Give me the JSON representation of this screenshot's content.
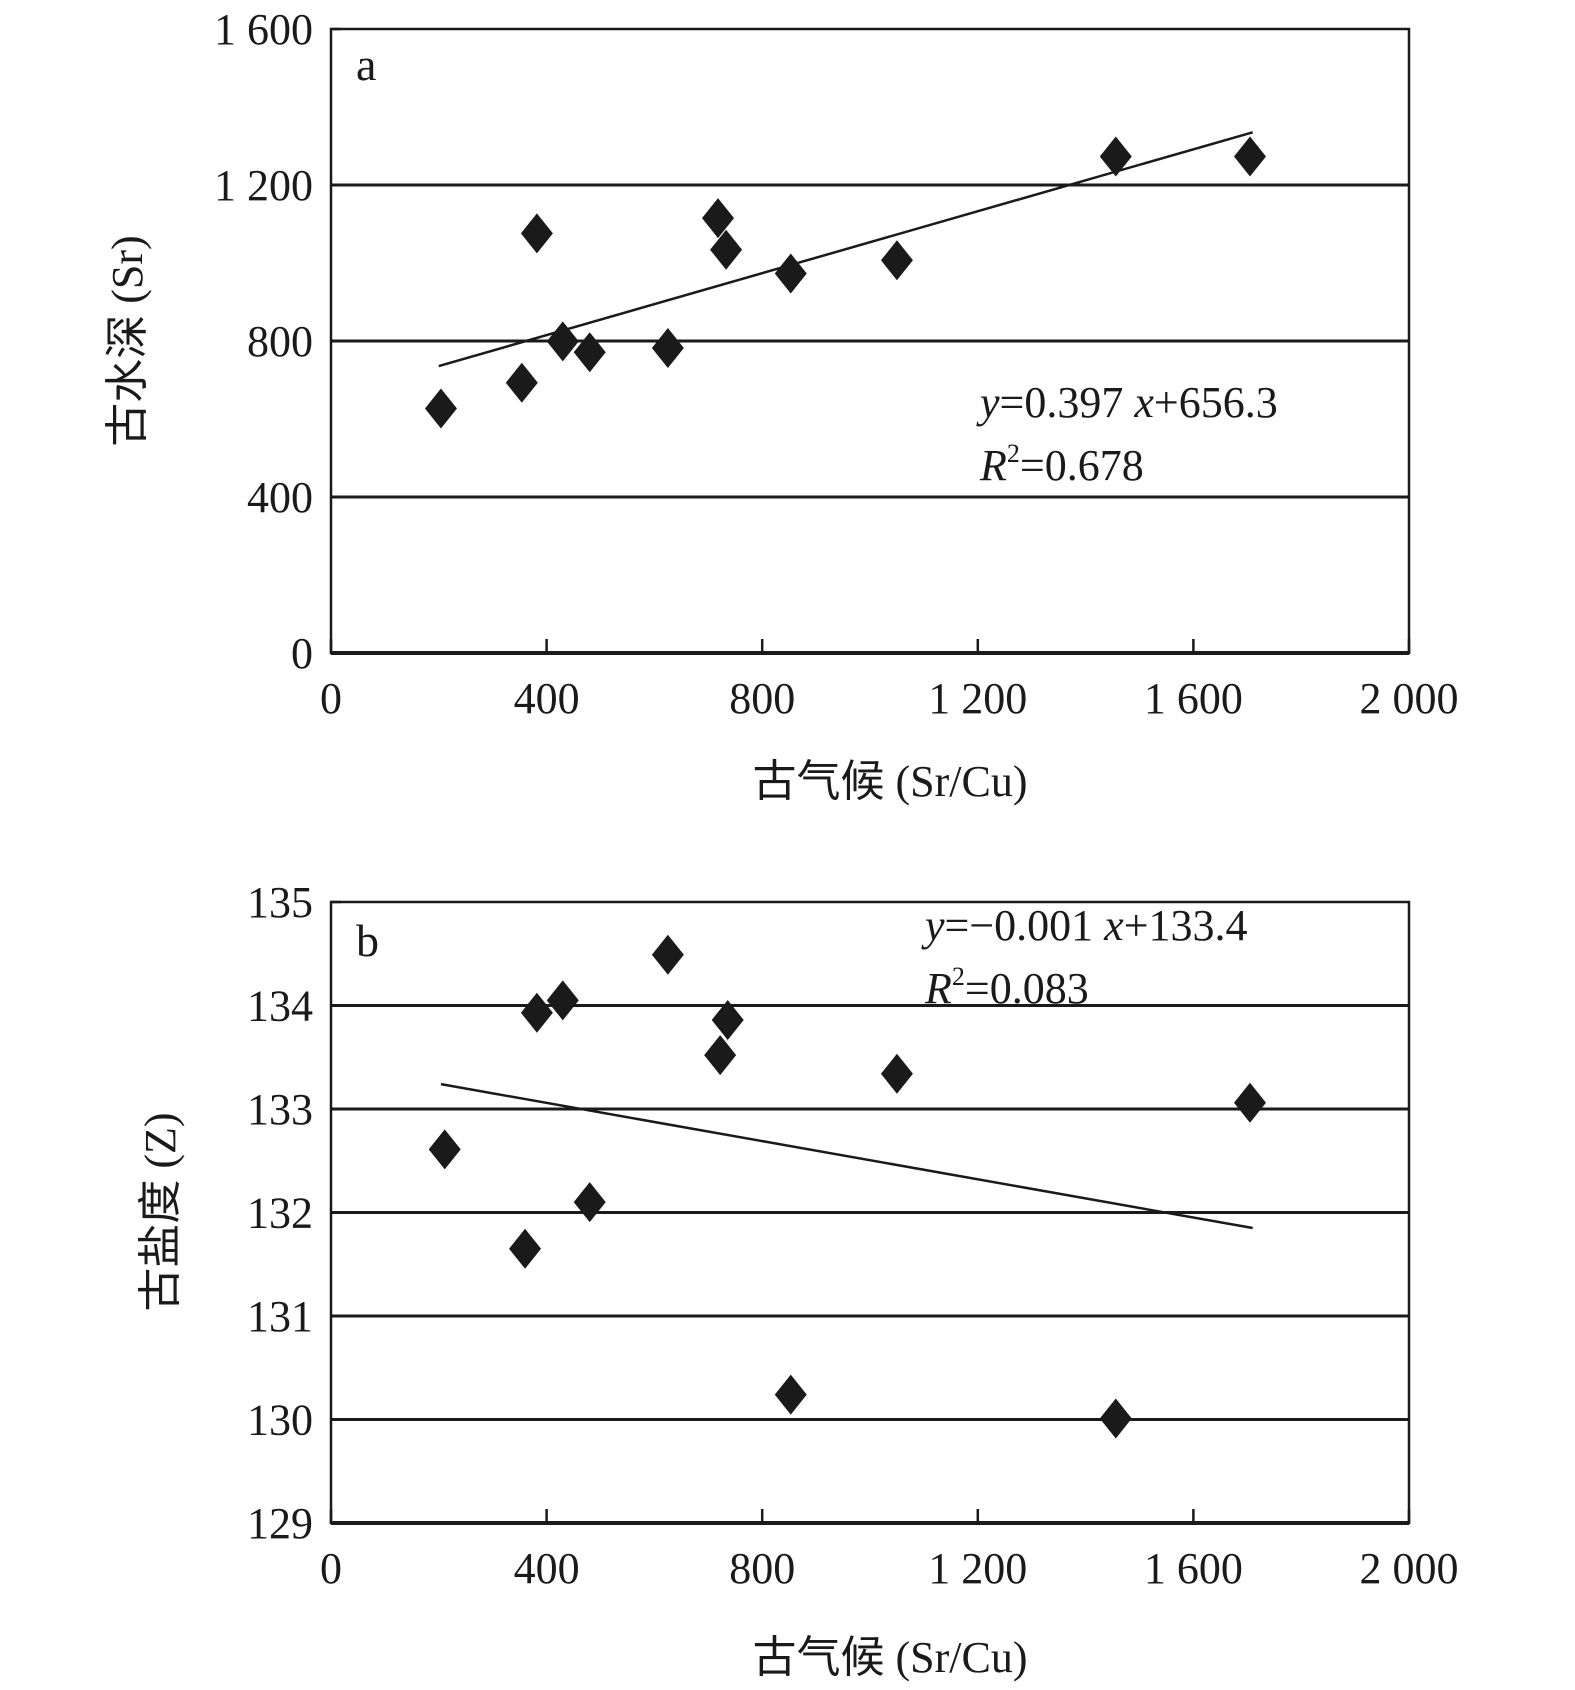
{
  "chart_data": [
    {
      "type": "scatter",
      "panel_label": "a",
      "xlabel": "古气候 (Sr/Cu)",
      "ylabel": "古水深 (Sr)",
      "xlim": [
        0,
        2000
      ],
      "ylim": [
        0,
        1600
      ],
      "xticks": [
        0,
        400,
        800,
        1200,
        1600,
        2000
      ],
      "xtick_labels": [
        "0",
        "400",
        "800",
        "1 200",
        "1 600",
        "2 000"
      ],
      "yticks": [
        0,
        400,
        800,
        1200,
        1600
      ],
      "ytick_labels": [
        "0",
        "400",
        "800",
        "1 200",
        "1 600"
      ],
      "gridlines_y": [
        400,
        800,
        1200
      ],
      "x": [
        204,
        354,
        382,
        430,
        480,
        625,
        718,
        733,
        853,
        1050,
        1456,
        1705
      ],
      "y": [
        627,
        693,
        1076,
        799,
        771,
        782,
        1115,
        1034,
        973,
        1007,
        1273,
        1273
      ],
      "trendline": {
        "slope": 0.397,
        "intercept": 656.3,
        "x_range": [
          200,
          1710
        ]
      },
      "equation": {
        "y_part": "y",
        "rest": "=0.397 ",
        "x_part": "x",
        "tail": "+656.3"
      },
      "r2": {
        "r": "R",
        "sup": "2",
        "value": "=0.678"
      },
      "marker_color": "#1a1a1a"
    },
    {
      "type": "scatter",
      "panel_label": "b",
      "xlabel": "古气候 (Sr/Cu)",
      "ylabel": "古盐度 (Z)",
      "xlim": [
        0,
        2000
      ],
      "ylim": [
        129,
        135
      ],
      "xticks": [
        0,
        400,
        800,
        1200,
        1600,
        2000
      ],
      "xtick_labels": [
        "0",
        "400",
        "800",
        "1 200",
        "1 600",
        "2 000"
      ],
      "yticks": [
        129,
        130,
        131,
        132,
        133,
        134,
        135
      ],
      "ytick_labels": [
        "129",
        "130",
        "131",
        "132",
        "133",
        "134",
        "135"
      ],
      "gridlines_y": [
        130,
        131,
        132,
        133,
        134
      ],
      "x": [
        211,
        360,
        382,
        430,
        480,
        625,
        722,
        736,
        853,
        1050,
        1456,
        1705
      ],
      "y": [
        132.61,
        131.65,
        133.93,
        134.05,
        132.1,
        134.49,
        133.52,
        133.86,
        130.24,
        133.34,
        130.01,
        133.06
      ],
      "trendline": {
        "y_at_start": 133.24,
        "y_at_end": 131.85,
        "x_range": [
          204,
          1710
        ]
      },
      "equation": {
        "y_part": "y",
        "rest": "=−0.001 ",
        "x_part": "x",
        "tail": "+133.4"
      },
      "r2": {
        "r": "R",
        "sup": "2",
        "value": "=0.083"
      },
      "marker_color": "#1a1a1a"
    }
  ]
}
